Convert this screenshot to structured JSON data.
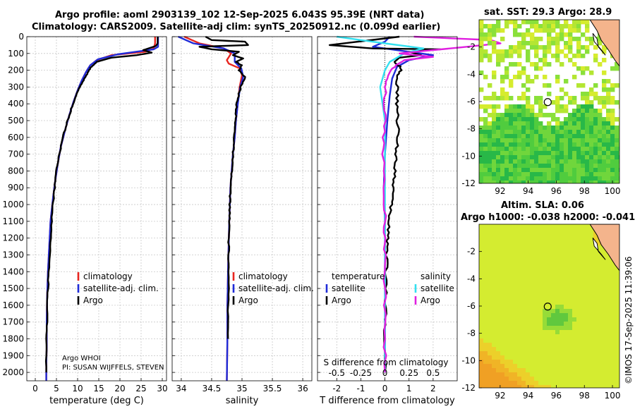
{
  "titles": {
    "line1": "Argo profile: aoml 2903139_102 12-Sep-2025 6.043S 95.39E (NRT data)",
    "line2": "Climatology: CARS2009. Satellite-adj clim: synTS_20250912.nc (0.099d earlier)",
    "map1": "sat. SST: 29.3 Argo: 28.9",
    "map2a": "Altim. SLA: 0.06",
    "map2b": "Argo h1000: -0.038 h2000: -0.041"
  },
  "credit": "©IMOS 17-Sep-2025 11:39:06",
  "float_info": [
    "Argo WHOI",
    "PI: SUSAN WIJFFELS, STEVEN"
  ],
  "legend": [
    "climatology",
    "satellite-adj. clim.",
    "Argo"
  ],
  "diff_legend": {
    "temp_head": "temperature",
    "sal_head": "salinity",
    "satellite": "satellite",
    "argo": "Argo"
  },
  "colors": {
    "clim": "#e8251f",
    "sat": "#1f2bd8",
    "argo": "#000000",
    "sat_s": "#33e0f0",
    "argo_s": "#e020e0"
  },
  "chart_data": [
    {
      "type": "line",
      "title": "",
      "xlabel": "temperature (deg C)",
      "ylabel": "",
      "xlim": [
        -2,
        31
      ],
      "ylim": [
        2050,
        0
      ],
      "xticks": [
        0,
        5,
        10,
        15,
        20,
        25,
        30
      ],
      "yticks": [
        0,
        100,
        200,
        300,
        400,
        500,
        600,
        700,
        800,
        900,
        1000,
        1100,
        1200,
        1300,
        1400,
        1500,
        1600,
        1700,
        1800,
        1900,
        2000
      ],
      "series": [
        {
          "name": "climatology",
          "color": "#e8251f",
          "x": [
            28.3,
            28.3,
            28.0,
            26.0,
            18.0,
            14.5,
            13.0,
            12.0,
            11.0,
            10.0,
            9.0,
            8.0,
            7.0,
            6.0,
            5.3,
            4.7,
            4.2,
            3.6,
            3.3,
            3.0,
            2.8,
            2.7,
            2.7,
            2.6,
            2.6
          ],
          "y": [
            0,
            40,
            70,
            90,
            110,
            140,
            170,
            210,
            260,
            320,
            390,
            470,
            560,
            660,
            760,
            860,
            960,
            1100,
            1250,
            1400,
            1550,
            1700,
            1850,
            1950,
            2050
          ]
        },
        {
          "name": "satellite-adj. clim.",
          "color": "#1f2bd8",
          "x": [
            29.0,
            29.0,
            29.0,
            28.0,
            19.5,
            14.8,
            13.0,
            12.0,
            11.0,
            10.0,
            9.0,
            8.0,
            7.0,
            6.0,
            5.3,
            4.7,
            4.2,
            3.6,
            3.3,
            3.0,
            2.8,
            2.7,
            2.7,
            2.6,
            2.6
          ],
          "y": [
            0,
            30,
            60,
            75,
            105,
            135,
            170,
            210,
            260,
            320,
            390,
            470,
            560,
            660,
            760,
            860,
            960,
            1100,
            1250,
            1400,
            1550,
            1700,
            1850,
            1950,
            2050
          ]
        },
        {
          "name": "Argo",
          "color": "#000000",
          "x": [
            28.9,
            28.9,
            28.5,
            25.5,
            27.5,
            24.0,
            18.0,
            14.5,
            13.1,
            12.0,
            10.8,
            9.6,
            8.5,
            7.5,
            6.5,
            5.7,
            5.0,
            4.5,
            4.0,
            3.6,
            3.3,
            3.0,
            2.8,
            2.7,
            2.6
          ],
          "y": [
            0,
            40,
            55,
            80,
            95,
            110,
            125,
            150,
            185,
            230,
            290,
            350,
            430,
            510,
            600,
            700,
            800,
            920,
            1050,
            1200,
            1350,
            1500,
            1650,
            1800,
            2000
          ]
        }
      ]
    },
    {
      "type": "line",
      "title": "",
      "xlabel": "salinity",
      "ylabel": "",
      "xlim": [
        33.85,
        36.15
      ],
      "ylim": [
        2050,
        0
      ],
      "xticks": [
        34,
        34.5,
        35,
        35.5,
        36
      ],
      "xticklabels": [
        "34",
        "34.5",
        "35",
        "35.5",
        "36"
      ],
      "series": [
        {
          "name": "climatology",
          "color": "#e8251f",
          "x": [
            34.05,
            34.3,
            34.7,
            34.82,
            34.75,
            34.78,
            34.97,
            35.0,
            34.96,
            34.93,
            34.9,
            34.88,
            34.85,
            34.83,
            34.81,
            34.8,
            34.79,
            34.78,
            34.77,
            34.76,
            34.76,
            34.75
          ],
          "y": [
            0,
            40,
            70,
            100,
            140,
            160,
            190,
            230,
            300,
            400,
            500,
            600,
            700,
            800,
            900,
            1000,
            1100,
            1250,
            1400,
            1600,
            1800,
            2050
          ]
        },
        {
          "name": "satellite-adj. clim.",
          "color": "#1f2bd8",
          "x": [
            33.95,
            34.2,
            34.7,
            34.88,
            34.88,
            34.99,
            35.02,
            34.97,
            34.93,
            34.9,
            34.88,
            34.85,
            34.83,
            34.81,
            34.8,
            34.79,
            34.78,
            34.77,
            34.76,
            34.76,
            34.75
          ],
          "y": [
            0,
            40,
            70,
            100,
            150,
            190,
            240,
            300,
            400,
            500,
            600,
            700,
            800,
            900,
            1000,
            1100,
            1250,
            1400,
            1600,
            1800,
            2050
          ]
        },
        {
          "name": "Argo",
          "color": "#000000",
          "x": [
            34.4,
            34.5,
            35.05,
            35.1,
            34.3,
            34.5,
            34.95,
            34.85,
            35.02,
            34.9,
            35.0,
            34.95,
            35.05,
            34.98,
            34.92,
            34.9,
            34.88,
            34.87,
            34.85,
            34.83,
            34.81,
            34.8,
            34.79,
            34.78,
            34.78,
            34.77,
            34.77
          ],
          "y": [
            0,
            20,
            30,
            50,
            60,
            75,
            90,
            110,
            130,
            150,
            170,
            200,
            240,
            300,
            380,
            460,
            540,
            620,
            700,
            800,
            900,
            1000,
            1100,
            1250,
            1400,
            1600,
            1800
          ]
        }
      ]
    },
    {
      "type": "line",
      "title": "",
      "xlabel": "T difference from climatology",
      "xlabel2": "S difference from climatology",
      "ylabel": "",
      "xlim": [
        -2.8,
        3.0
      ],
      "ylim": [
        2050,
        0
      ],
      "xticks": [
        -2,
        -1,
        0,
        1,
        2
      ],
      "xticks2": [
        -0.5,
        -0.25,
        0,
        0.25,
        0.5
      ],
      "xticklabels2": [
        "-0.5",
        "-0.25",
        "0",
        "0.25",
        "0.5"
      ],
      "series": [
        {
          "name": "T satellite",
          "color": "#1f2bd8",
          "x": [
            0.2,
            0.0,
            -0.5,
            1.0,
            2.0,
            1.0,
            0.5,
            0.3,
            0.2,
            0.1,
            0.0,
            -0.05,
            0.0,
            0.0,
            0.0,
            0.0,
            0.0,
            0.0
          ],
          "y": [
            0,
            30,
            60,
            90,
            110,
            140,
            180,
            250,
            350,
            500,
            700,
            900,
            1100,
            1300,
            1500,
            1700,
            1900,
            2000
          ]
        },
        {
          "name": "T Argo",
          "color": "#000000",
          "x": [
            0.6,
            -2.3,
            -0.5,
            2.3,
            1.0,
            1.5,
            0.6,
            0.4,
            0.7,
            0.5,
            0.5,
            0.5,
            0.55,
            0.5,
            0.45,
            0.4,
            0.3,
            0.2,
            0.15,
            0.1,
            0.05,
            0.05,
            0.0,
            0.0
          ],
          "y": [
            0,
            50,
            70,
            75,
            90,
            110,
            125,
            150,
            190,
            250,
            350,
            450,
            550,
            650,
            750,
            850,
            950,
            1050,
            1150,
            1250,
            1400,
            1550,
            1750,
            2000
          ]
        },
        {
          "name": "S satellite",
          "color": "#33e0f0",
          "x": [
            -0.5,
            0.0,
            0.4,
            0.2,
            0.05,
            0.0,
            -0.05,
            0.0,
            0.0,
            0.0,
            0.0,
            0.0,
            0.0,
            0.0
          ],
          "y": [
            0,
            40,
            70,
            100,
            150,
            200,
            300,
            500,
            700,
            900,
            1100,
            1300,
            1600,
            2000
          ]
        },
        {
          "name": "S Argo",
          "color": "#e020e0",
          "x": [
            0.3,
            1.1,
            1.2,
            0.5,
            0.15,
            0.5,
            0.2,
            0.05,
            0.0,
            0.0,
            -0.02,
            0.0,
            0.0,
            0.0,
            0.0,
            0.0
          ],
          "y": [
            0,
            20,
            40,
            80,
            100,
            120,
            140,
            200,
            300,
            500,
            700,
            1000,
            1200,
            1400,
            1700,
            2000
          ]
        }
      ]
    }
  ],
  "map1": {
    "xticks": [
      "92",
      "94",
      "96",
      "98",
      "100"
    ],
    "yticks": [
      "-2",
      "-4",
      "-6",
      "-8",
      "-10",
      "-12"
    ],
    "lon": [
      90.5,
      100.5
    ],
    "lat": [
      -12,
      0
    ],
    "argo": [
      95.39,
      -6.04
    ]
  },
  "map2": {
    "xticks": [
      "92",
      "94",
      "96",
      "98",
      "100"
    ],
    "yticks": [
      "-2",
      "-4",
      "-6",
      "-8",
      "-10",
      "-12"
    ],
    "lon": [
      90.5,
      100.5
    ],
    "lat": [
      -12,
      0
    ],
    "argo": [
      95.39,
      -6.04
    ]
  }
}
